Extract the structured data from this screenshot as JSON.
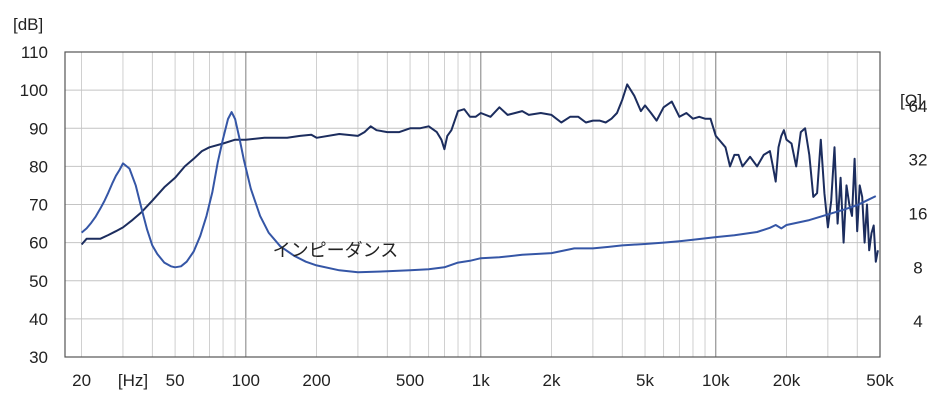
{
  "chart_data": {
    "type": "line",
    "title": "",
    "x_unit": "[Hz]",
    "y_left_unit": "[dB]",
    "y_right_unit": "[Ω]",
    "x_scale": "log",
    "y_right_scale": "log",
    "xlim": [
      17,
      50000
    ],
    "ylim": [
      30,
      110
    ],
    "y_right_lim": [
      2.52,
      128
    ],
    "grid": true,
    "x_ticks": [
      {
        "value": 20,
        "label": "20"
      },
      {
        "value": 50,
        "label": "50"
      },
      {
        "value": 100,
        "label": "100"
      },
      {
        "value": 200,
        "label": "200"
      },
      {
        "value": 500,
        "label": "500"
      },
      {
        "value": 1000,
        "label": "1k"
      },
      {
        "value": 2000,
        "label": "2k"
      },
      {
        "value": 5000,
        "label": "5k"
      },
      {
        "value": 10000,
        "label": "10k"
      },
      {
        "value": 20000,
        "label": "20k"
      },
      {
        "value": 50000,
        "label": "50k"
      }
    ],
    "y_left_ticks": [
      30,
      40,
      50,
      60,
      70,
      80,
      90,
      100,
      110
    ],
    "y_right_ticks": [
      4,
      8,
      16,
      32,
      64
    ],
    "annotation": {
      "text": "インピーダンス",
      "x": 430,
      "y": 58
    },
    "series": [
      {
        "name": "",
        "axis": "left",
        "color": "#1c2d5e",
        "x": [
          20,
          21,
          22,
          24,
          26,
          28,
          30,
          33,
          36,
          40,
          45,
          50,
          55,
          60,
          65,
          70,
          80,
          90,
          100,
          120,
          150,
          170,
          190,
          200,
          250,
          300,
          320,
          340,
          360,
          400,
          450,
          500,
          550,
          600,
          650,
          680,
          700,
          720,
          750,
          800,
          850,
          900,
          950,
          1000,
          1100,
          1200,
          1300,
          1400,
          1500,
          1600,
          1800,
          2000,
          2200,
          2400,
          2600,
          2800,
          3000,
          3200,
          3400,
          3600,
          3800,
          4000,
          4200,
          4500,
          4800,
          5000,
          5300,
          5600,
          6000,
          6500,
          7000,
          7500,
          8000,
          8500,
          9000,
          9500,
          10000,
          11000,
          11500,
          12000,
          12500,
          13000,
          14000,
          15000,
          16000,
          17000,
          17500,
          18000,
          18500,
          19000,
          19500,
          20000,
          21000,
          22000,
          23000,
          24000,
          25000,
          26000,
          27000,
          28000,
          29000,
          30000,
          31000,
          32000,
          33000,
          34000,
          35000,
          36000,
          37000,
          38000,
          39000,
          40000,
          41000,
          42000,
          43000,
          44000,
          45000,
          46000,
          47000,
          48000,
          49000
        ],
        "y": [
          59.5,
          61,
          61,
          61,
          62,
          63,
          64,
          66,
          68,
          71,
          74.5,
          77,
          80,
          82,
          84,
          85,
          86,
          87,
          87,
          87.5,
          87.5,
          88,
          88.3,
          87.5,
          88.5,
          88,
          89,
          90.5,
          89.5,
          89,
          89,
          90,
          90,
          90.5,
          89,
          87,
          84.5,
          88,
          89.5,
          94.5,
          95,
          93,
          93,
          94,
          93,
          95.5,
          93.5,
          94,
          94.5,
          93.5,
          94,
          93.5,
          91.5,
          93,
          93,
          91.5,
          92,
          92,
          91.5,
          92.5,
          94,
          97.5,
          101.5,
          98.5,
          94.5,
          96,
          94,
          92,
          95.5,
          97,
          93,
          94,
          92.5,
          93,
          92.5,
          92.5,
          88,
          85,
          80,
          83,
          83,
          80,
          82.5,
          80,
          83,
          84,
          80,
          76,
          85,
          88,
          89.5,
          87,
          86,
          80,
          89,
          90,
          83,
          72,
          73,
          87,
          73,
          64,
          71,
          85,
          65,
          77,
          60,
          75,
          70,
          67,
          82,
          63,
          75,
          72,
          60,
          70,
          58,
          62.5,
          64.5,
          55,
          58
        ]
      },
      {
        "name": "インピーダンス",
        "axis": "right",
        "color": "#3556a6",
        "x": [
          20,
          21,
          22,
          23,
          24,
          25,
          26,
          27,
          28,
          29,
          30,
          32,
          34,
          36,
          38,
          40,
          42,
          45,
          48,
          50,
          53,
          56,
          60,
          64,
          68,
          72,
          76,
          80,
          84,
          87,
          90,
          94,
          98,
          105,
          115,
          125,
          140,
          160,
          180,
          200,
          250,
          300,
          400,
          500,
          600,
          700,
          800,
          900,
          1000,
          1200,
          1500,
          2000,
          2500,
          3000,
          3500,
          4000,
          5000,
          6000,
          7000,
          8000,
          9000,
          10000,
          12000,
          15000,
          17000,
          18000,
          19000,
          20000,
          25000,
          30000,
          35000,
          40000,
          45000,
          48000
        ],
        "y": [
          12.5,
          13.2,
          14.2,
          15.4,
          17,
          18.8,
          21,
          23.5,
          26,
          28,
          30.5,
          28.5,
          23,
          17,
          13,
          10.6,
          9.5,
          8.5,
          8.1,
          8,
          8.1,
          8.6,
          9.8,
          12,
          15.5,
          21,
          31,
          42,
          54,
          59,
          54,
          42,
          32,
          22,
          15.5,
          12.5,
          10.5,
          9.3,
          8.6,
          8.2,
          7.7,
          7.5,
          7.6,
          7.7,
          7.8,
          8,
          8.5,
          8.7,
          9,
          9.1,
          9.4,
          9.6,
          10.2,
          10.2,
          10.4,
          10.6,
          10.8,
          11.0,
          11.2,
          11.4,
          11.6,
          11.8,
          12.1,
          12.6,
          13.3,
          13.8,
          13.2,
          13.8,
          14.7,
          15.8,
          16.8,
          17.8,
          19.2,
          20
        ]
      }
    ]
  }
}
